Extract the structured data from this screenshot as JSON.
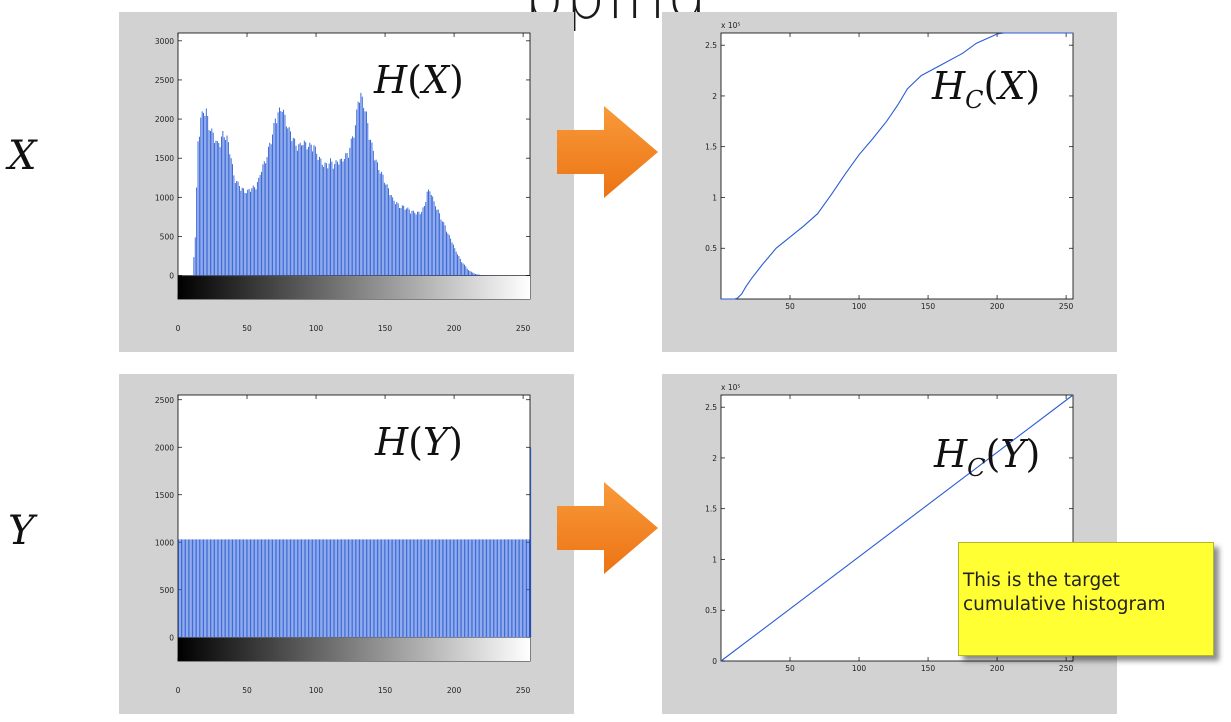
{
  "slide": {
    "title_fragment": "pping",
    "row_labels": [
      "X",
      "Y"
    ],
    "plot_labels": {
      "hx": {
        "base": "H",
        "sub": "",
        "arg": "X"
      },
      "hcx": {
        "base": "H",
        "sub": "C",
        "arg": "X"
      },
      "hy": {
        "base": "H",
        "sub": "",
        "arg": "Y"
      },
      "hcy": {
        "base": "H",
        "sub": "C",
        "arg": "Y"
      }
    },
    "note": "This is the target cumulative histogram",
    "colors": {
      "plot_line": "#2a5cd6",
      "arrow": "#f5821f",
      "note_bg": "#ffff33",
      "panel_bg": "#d2d2d2"
    }
  },
  "chart_data": [
    {
      "type": "bar",
      "name": "hist_x",
      "x_ticks": [
        0,
        50,
        100,
        150,
        200,
        250
      ],
      "y_ticks": [
        0,
        500,
        1000,
        1500,
        2000,
        2500,
        3000
      ],
      "xlim": [
        0,
        255
      ],
      "ylim": [
        -300,
        3100
      ],
      "gradient_colorbar": true,
      "x": [
        10,
        12,
        14,
        16,
        18,
        20,
        22,
        25,
        28,
        30,
        32,
        35,
        38,
        40,
        43,
        45,
        48,
        50,
        53,
        55,
        58,
        60,
        63,
        65,
        68,
        70,
        73,
        75,
        78,
        80,
        83,
        85,
        88,
        90,
        93,
        95,
        98,
        100,
        103,
        105,
        108,
        110,
        113,
        115,
        118,
        120,
        123,
        125,
        128,
        130,
        132,
        134,
        136,
        138,
        140,
        143,
        145,
        148,
        150,
        153,
        155,
        158,
        160,
        163,
        165,
        168,
        170,
        173,
        175,
        178,
        180,
        183,
        185,
        188,
        190,
        193,
        195,
        198,
        200,
        203,
        205,
        208,
        210,
        213,
        215,
        218,
        220,
        225,
        230,
        235,
        240,
        250
      ],
      "values": [
        0,
        500,
        1750,
        2050,
        2150,
        2150,
        1950,
        1850,
        1720,
        1750,
        1850,
        1800,
        1550,
        1300,
        1200,
        1150,
        1100,
        1100,
        1150,
        1150,
        1250,
        1400,
        1500,
        1650,
        1850,
        2050,
        2150,
        2200,
        2000,
        1900,
        1800,
        1700,
        1700,
        1750,
        1700,
        1700,
        1700,
        1600,
        1500,
        1450,
        1450,
        1500,
        1450,
        1500,
        1500,
        1550,
        1600,
        1750,
        1950,
        2300,
        2350,
        2250,
        2100,
        1850,
        1700,
        1500,
        1400,
        1300,
        1200,
        1100,
        1000,
        950,
        900,
        900,
        880,
        850,
        830,
        820,
        820,
        900,
        1100,
        1100,
        950,
        850,
        750,
        650,
        550,
        450,
        350,
        250,
        180,
        120,
        70,
        40,
        20,
        10,
        5,
        2,
        0,
        0,
        0,
        0
      ]
    },
    {
      "type": "line",
      "name": "cumulative_x",
      "x_ticks": [
        50,
        100,
        150,
        200,
        250
      ],
      "y_ticks": [
        0.5,
        1,
        1.5,
        2,
        2.5
      ],
      "y_scale_label": "x 10⁵",
      "xlim": [
        0,
        255
      ],
      "ylim": [
        0,
        2.62
      ],
      "x": [
        0,
        10,
        12,
        15,
        18,
        22,
        30,
        40,
        50,
        60,
        70,
        80,
        90,
        100,
        110,
        120,
        128,
        135,
        145,
        160,
        175,
        185,
        195,
        200,
        205,
        255
      ],
      "values": [
        0,
        0,
        0.01,
        0.05,
        0.12,
        0.2,
        0.34,
        0.5,
        0.61,
        0.72,
        0.84,
        1.03,
        1.23,
        1.42,
        1.58,
        1.75,
        1.91,
        2.07,
        2.2,
        2.31,
        2.42,
        2.52,
        2.58,
        2.61,
        2.62,
        2.62
      ]
    },
    {
      "type": "bar",
      "name": "hist_y",
      "x_ticks": [
        0,
        50,
        100,
        150,
        200,
        250
      ],
      "y_ticks": [
        0,
        500,
        1000,
        1500,
        2000,
        2500
      ],
      "xlim": [
        0,
        255
      ],
      "ylim": [
        -250,
        2550
      ],
      "gradient_colorbar": true,
      "uniform_value": 1030,
      "end_spike": {
        "x": 255,
        "value": 2000
      }
    },
    {
      "type": "line",
      "name": "cumulative_y",
      "x_ticks": [
        50,
        100,
        150,
        200,
        250
      ],
      "y_ticks": [
        0,
        0.5,
        1,
        1.5,
        2,
        2.5
      ],
      "y_scale_label": "x 10⁵",
      "xlim": [
        0,
        255
      ],
      "ylim": [
        0,
        2.62
      ],
      "x": [
        0,
        255
      ],
      "values": [
        0,
        2.62
      ]
    }
  ]
}
